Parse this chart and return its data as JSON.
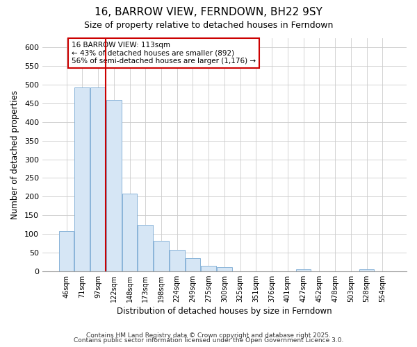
{
  "title": "16, BARROW VIEW, FERNDOWN, BH22 9SY",
  "subtitle": "Size of property relative to detached houses in Ferndown",
  "xlabel": "Distribution of detached houses by size in Ferndown",
  "ylabel": "Number of detached properties",
  "bar_color": "#d6e6f5",
  "bar_edge_color": "#8ab4d8",
  "bg_color": "#ffffff",
  "fig_color": "#ffffff",
  "annotation_text": "16 BARROW VIEW: 113sqm\n← 43% of detached houses are smaller (892)\n56% of semi-detached houses are larger (1,176) →",
  "vline_color": "#cc0000",
  "vline_index": 2.5,
  "categories": [
    "46sqm",
    "71sqm",
    "97sqm",
    "122sqm",
    "148sqm",
    "173sqm",
    "198sqm",
    "224sqm",
    "249sqm",
    "275sqm",
    "300sqm",
    "325sqm",
    "351sqm",
    "376sqm",
    "401sqm",
    "427sqm",
    "452sqm",
    "478sqm",
    "503sqm",
    "528sqm",
    "554sqm"
  ],
  "values": [
    107,
    492,
    492,
    460,
    208,
    125,
    82,
    58,
    35,
    15,
    10,
    0,
    0,
    0,
    0,
    5,
    0,
    0,
    0,
    5,
    0
  ],
  "ylim": [
    0,
    625
  ],
  "yticks": [
    0,
    50,
    100,
    150,
    200,
    250,
    300,
    350,
    400,
    450,
    500,
    550,
    600
  ],
  "footnote1": "Contains HM Land Registry data © Crown copyright and database right 2025.",
  "footnote2": "Contains public sector information licensed under the Open Government Licence 3.0."
}
